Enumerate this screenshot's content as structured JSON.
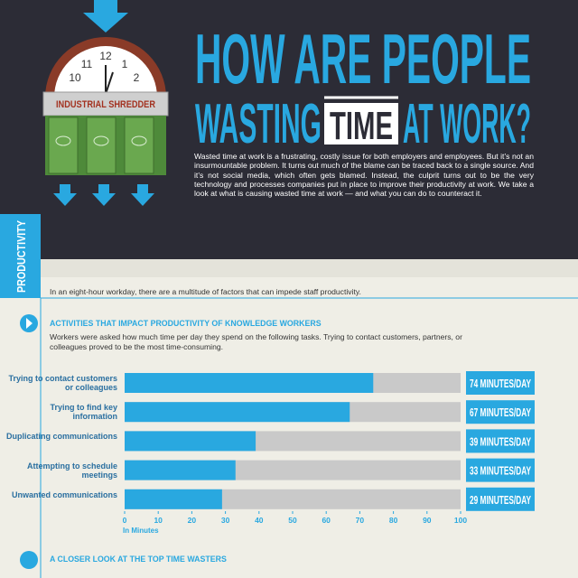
{
  "header": {
    "title_line1": "HOW ARE PEOPLE",
    "title_wasting": "WASTING",
    "title_time": "TIME",
    "title_at_work": "AT WORK?",
    "intro": "Wasted time at work is a frustrating, costly issue for both employers and employees. But it’s not an insurmountable problem. It turns out much of the blame can be traced back to a single source. And it’s not social media, which often gets blamed. Instead, the culprit turns out to be the very technology and processes companies put in place to improve their productivity at work. We take a look at what is causing wasted time at work — and what you can do to counteract it."
  },
  "illustration": {
    "clock_numbers": [
      "11",
      "12",
      "1",
      "10",
      "2"
    ],
    "label": "INDUSTRIAL SHREDDER"
  },
  "section": {
    "tab": "PRODUCTIVITY",
    "intro": "In an eight-hour workday, there are a multitude of factors that can impede staff productivity.",
    "heading": "ACTIVITIES THAT IMPACT PRODUCTIVITY OF KNOWLEDGE WORKERS",
    "description": "Workers were asked how much time per day they spend on the following tasks. Trying to contact customers, partners, or colleagues proved to be the most time-consuming.",
    "next_heading": "A CLOSER LOOK AT THE TOP TIME WASTERS"
  },
  "chart_data": {
    "type": "bar",
    "horizontal": true,
    "categories": [
      "Trying to contact customers or colleagues",
      "Trying to find key information",
      "Duplicating communications",
      "Attempting to schedule meetings",
      "Unwanted communications"
    ],
    "values": [
      74,
      67,
      39,
      33,
      29
    ],
    "value_labels": [
      "74 MINUTES/DAY",
      "67 MINUTES/DAY",
      "39 MINUTES/DAY",
      "33 MINUTES/DAY",
      "29 MINUTES/DAY"
    ],
    "color": "#29a8e0",
    "track_color": "#c9c9c9",
    "xlim": [
      0,
      100
    ],
    "xticks": [
      0,
      10,
      20,
      30,
      40,
      50,
      60,
      70,
      80,
      90,
      100
    ],
    "x_label": "In Minutes"
  }
}
